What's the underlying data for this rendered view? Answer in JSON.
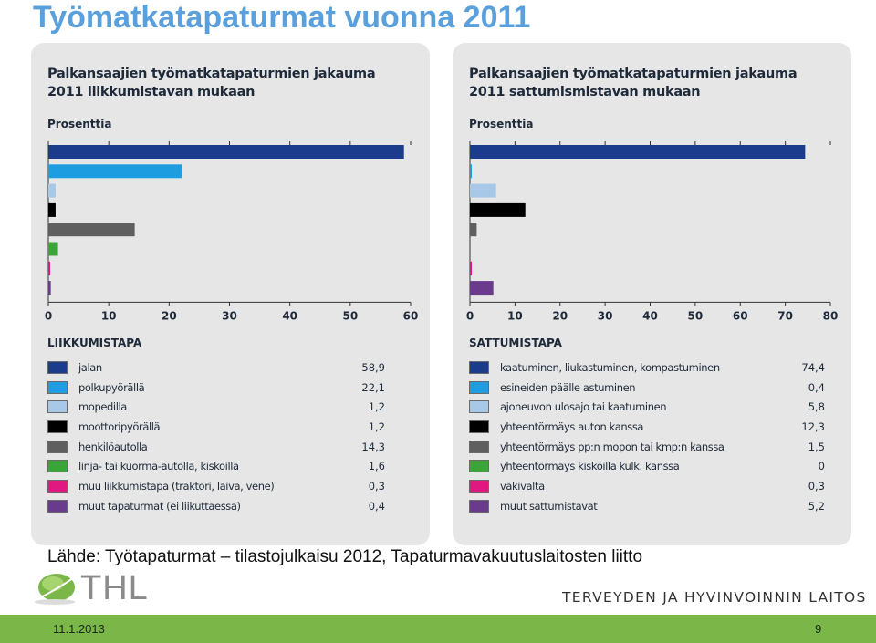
{
  "slide": {
    "title": "Työmatkatapaturmat vuonna 2011",
    "source": "Lähde: Työtapaturmat – tilastojulkaisu 2012, Tapaturmavakuutuslaitosten liitto",
    "logo_text": "THL",
    "institute": "TERVEYDEN JA HYVINVOINNIN LAITOS",
    "date": "11.1.2013",
    "page_number": "9"
  },
  "chart_data": [
    {
      "type": "bar",
      "orientation": "horizontal",
      "title_line1": "Palkansaajien työmatkatapaturmien jakauma",
      "title_line2": "2011 liikkumistavan mukaan",
      "unit_label": "Prosenttia",
      "legend_title": "LIIKKUMISTAPA",
      "xlim": [
        0,
        60
      ],
      "ticks": [
        0,
        10,
        20,
        30,
        40,
        50,
        60
      ],
      "categories": [
        "jalan",
        "polkupyörällä",
        "mopedilla",
        "moottoripyörällä",
        "henkilöautolla",
        "linja- tai kuorma-autolla, kiskoilla",
        "muu liikkumistapa (traktori, laiva, vene)",
        "muut tapaturmat (ei liikuttaessa)"
      ],
      "values": [
        58.9,
        22.1,
        1.2,
        1.2,
        14.3,
        1.6,
        0.3,
        0.4
      ],
      "value_labels": [
        "58,9",
        "22,1",
        "1,2",
        "1,2",
        "14,3",
        "1,6",
        "0,3",
        "0,4"
      ],
      "colors": [
        "#1b3c8c",
        "#1e9ee0",
        "#a8c8e8",
        "#000000",
        "#5f5f5f",
        "#3aa63a",
        "#e01980",
        "#6a3a8c"
      ]
    },
    {
      "type": "bar",
      "orientation": "horizontal",
      "title_line1": "Palkansaajien työmatkatapaturmien jakauma",
      "title_line2": "2011 sattumismistavan mukaan",
      "unit_label": "Prosenttia",
      "legend_title": "SATTUMISTAPA",
      "xlim": [
        0,
        80
      ],
      "ticks": [
        0,
        10,
        20,
        30,
        40,
        50,
        60,
        70,
        80
      ],
      "categories": [
        "kaatuminen, liukastuminen, kompastuminen",
        "esineiden päälle astuminen",
        "ajoneuvon ulosajo tai kaatuminen",
        "yhteentörmäys auton kanssa",
        "yhteentörmäys pp:n mopon tai kmp:n kanssa",
        "yhteentörmäys kiskoilla kulk. kanssa",
        "väkivalta",
        "muut sattumistavat"
      ],
      "values": [
        74.4,
        0.4,
        5.8,
        12.3,
        1.5,
        0,
        0.3,
        5.2
      ],
      "value_labels": [
        "74,4",
        "0,4",
        "5,8",
        "12,3",
        "1,5",
        "0",
        "0,3",
        "5,2"
      ],
      "colors": [
        "#1b3c8c",
        "#1e9ee0",
        "#a8c8e8",
        "#000000",
        "#5f5f5f",
        "#3aa63a",
        "#e01980",
        "#6a3a8c"
      ]
    }
  ]
}
